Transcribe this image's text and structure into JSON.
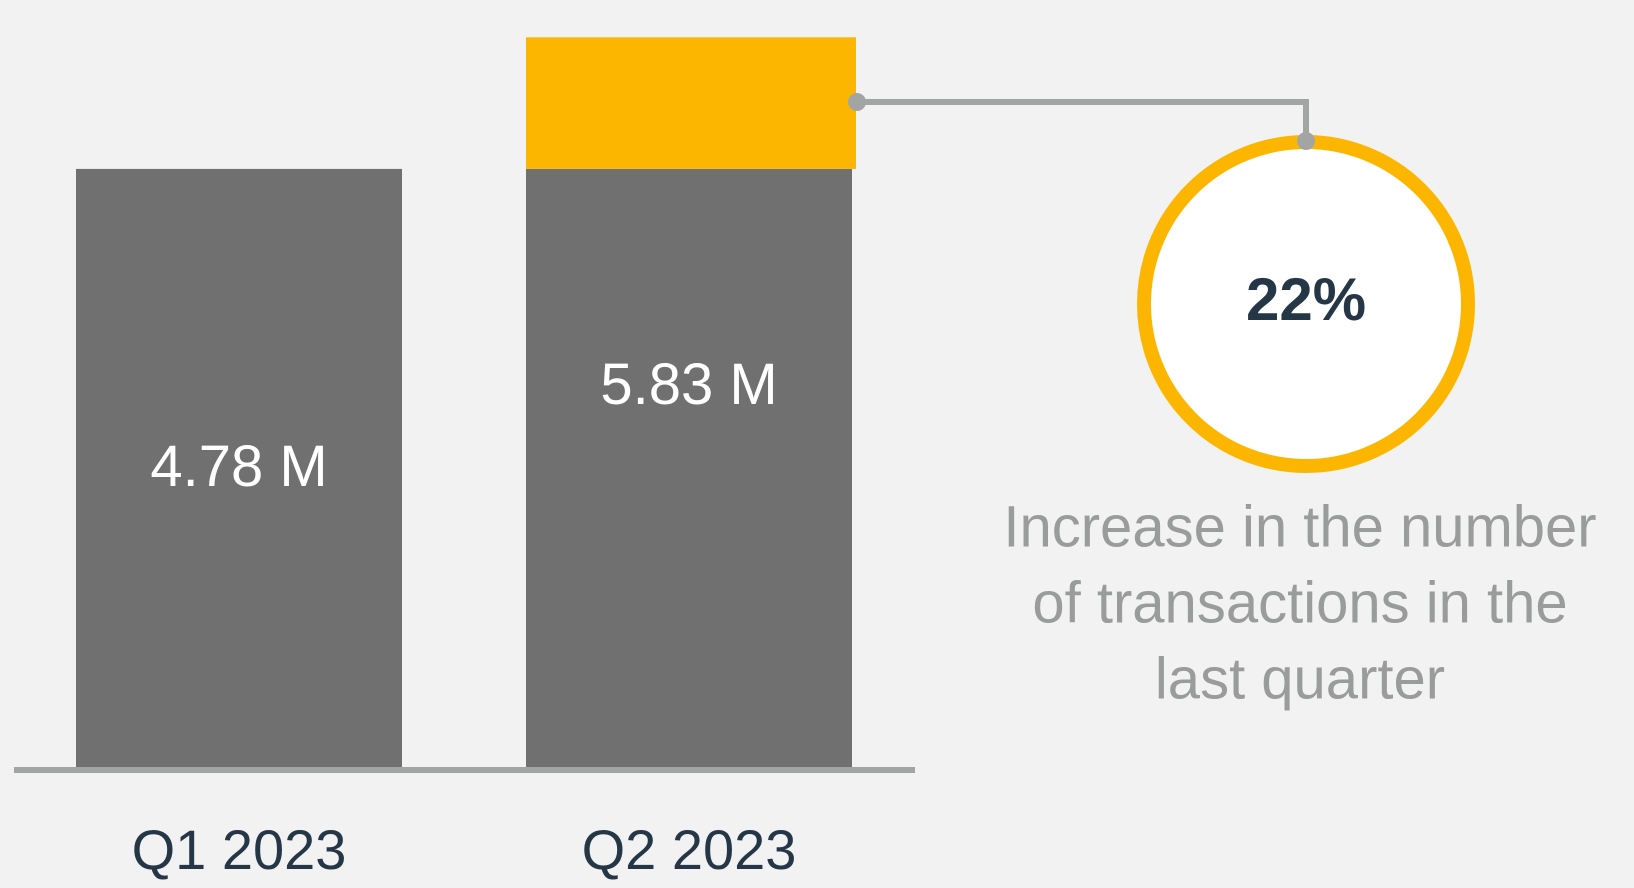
{
  "chart_data": {
    "type": "bar",
    "categories": [
      "Q1 2023",
      "Q2 2023"
    ],
    "values": [
      4.78,
      5.83
    ],
    "value_labels": [
      "4.78 M",
      "5.83 M"
    ],
    "color": "#6f706f",
    "increase_color": "#fdb600",
    "ylim": [
      0,
      6
    ],
    "annotation": {
      "value": "22%",
      "caption": [
        "Increase in the number",
        "of transactions in the",
        "last quarter"
      ]
    }
  }
}
